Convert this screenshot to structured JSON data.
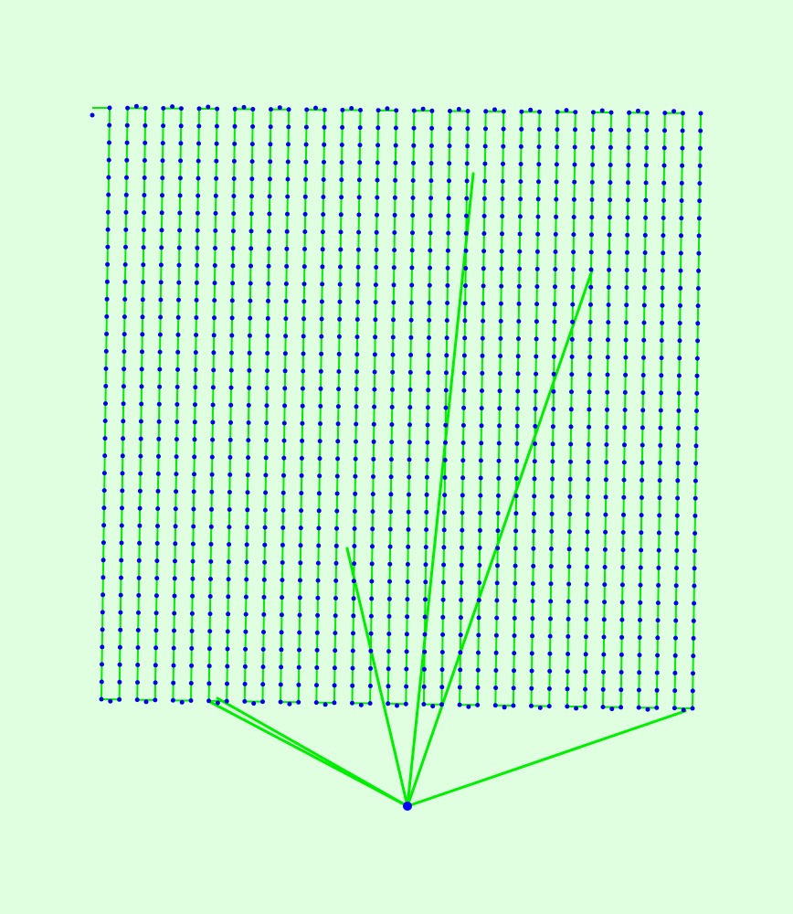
{
  "map": {
    "background_color": "#e0ffe0",
    "path_color": "#00ee00",
    "point_color": "#0000ee",
    "home_point_color": "#0000ff"
  }
}
